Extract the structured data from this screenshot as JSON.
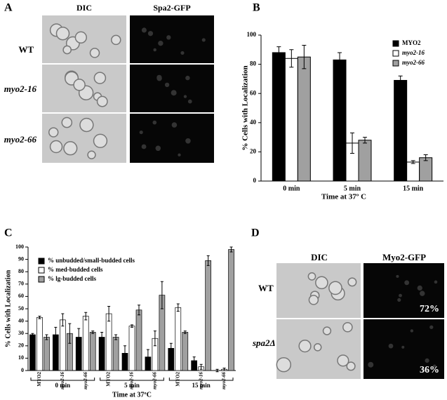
{
  "panels": {
    "a": {
      "label": "A",
      "columns": [
        "DIC",
        "Spa2-GFP"
      ],
      "rows": [
        "WT",
        "myo2-16",
        "myo2-66"
      ]
    },
    "b": {
      "label": "B"
    },
    "c": {
      "label": "C"
    },
    "d": {
      "label": "D",
      "columns": [
        "DIC",
        "Myo2-GFP"
      ],
      "rows": [
        "WT",
        "spa2Δ"
      ],
      "percentages": [
        "72%",
        "36%"
      ]
    }
  },
  "chart_data": [
    {
      "type": "bar",
      "ylabel": "% Cells with Localization",
      "xlabel": "Time at 37º C",
      "categories": [
        "0 min",
        "5 min",
        "15 min"
      ],
      "series": [
        {
          "name": "MYO2",
          "color": "#000000",
          "values": [
            88,
            83,
            69
          ],
          "errors": [
            4,
            5,
            3
          ]
        },
        {
          "name": "myo2-16",
          "color": "#ffffff",
          "values": [
            84,
            26,
            13
          ],
          "errors": [
            6,
            7,
            1
          ]
        },
        {
          "name": "myo2-66",
          "color": "#a0a0a0",
          "values": [
            85,
            28,
            16
          ],
          "errors": [
            8,
            2,
            2
          ]
        }
      ],
      "ylim": [
        0,
        100
      ],
      "yticks": [
        0,
        20,
        40,
        60,
        80,
        100
      ],
      "legend": "upper right"
    },
    {
      "type": "grouped-bar",
      "ylabel": "% Cells with Localization",
      "xlabel": "Time at 37ºC",
      "groups": [
        "0 min",
        "5 min",
        "15 min"
      ],
      "categories": [
        "MYO2",
        "myo2-16",
        "myo2-66",
        "MYO2",
        "myo2-16",
        "myo2-66",
        "MYO2",
        "myo2-16",
        "myo2-66"
      ],
      "series": [
        {
          "name": "% unbudded/small-budded cells",
          "color": "#000000",
          "values": [
            29,
            29,
            27,
            27,
            14,
            11,
            18,
            8,
            0
          ],
          "errors": [
            1,
            6,
            7,
            4,
            6,
            6,
            4,
            3,
            1
          ]
        },
        {
          "name": "% med-budded cells",
          "color": "#ffffff",
          "values": [
            43,
            41,
            44,
            46,
            36,
            26,
            51,
            3,
            1
          ],
          "errors": [
            1,
            5,
            3,
            6,
            1,
            6,
            3,
            2,
            1
          ]
        },
        {
          "name": "% lg-budded cells",
          "color": "#a0a0a0",
          "values": [
            27,
            30,
            31,
            27,
            49,
            61,
            31,
            89,
            98
          ],
          "errors": [
            2,
            8,
            1,
            2,
            4,
            11,
            1,
            4,
            2
          ]
        }
      ],
      "ylim": [
        0,
        100
      ],
      "yticks": [
        0,
        10,
        20,
        30,
        40,
        50,
        60,
        70,
        80,
        90,
        100
      ],
      "legend": "upper left"
    }
  ]
}
